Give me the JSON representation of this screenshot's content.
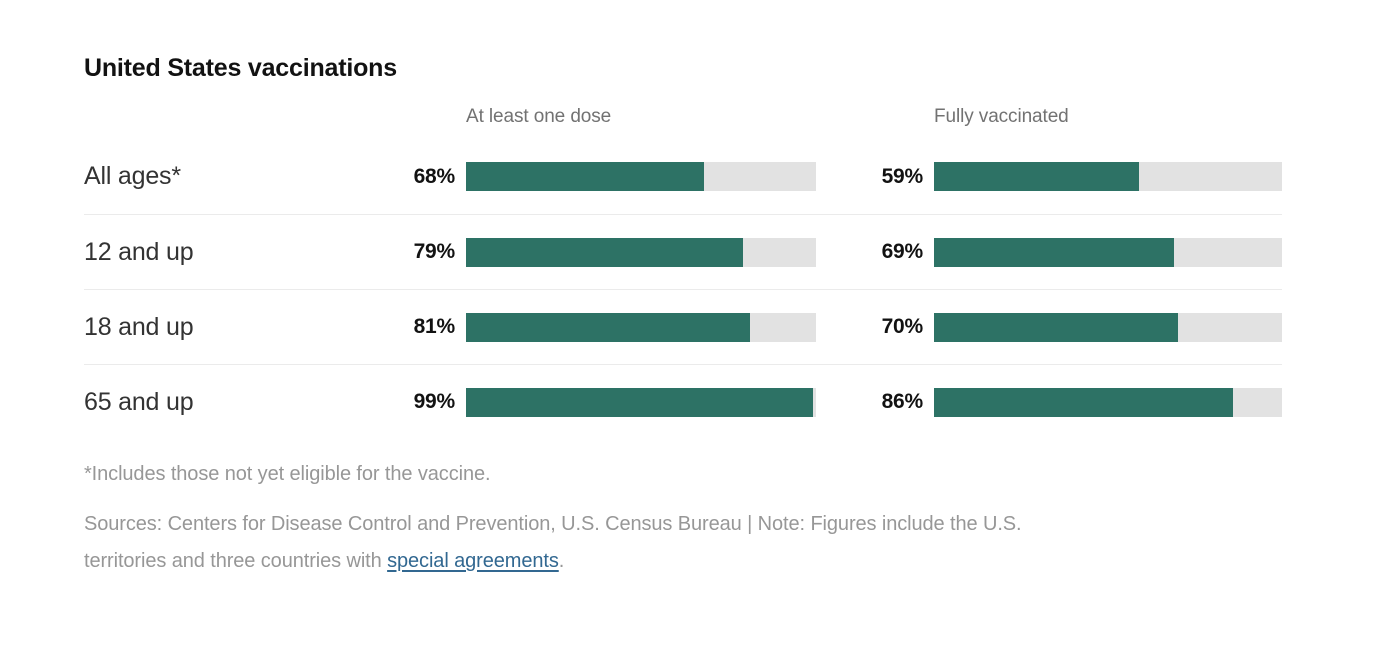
{
  "chart_data": {
    "type": "bar",
    "title": "United States vaccinations",
    "categories": [
      "All ages*",
      "12 and up",
      "18 and up",
      "65 and up"
    ],
    "series": [
      {
        "name": "At least one dose",
        "values": [
          68,
          79,
          81,
          99
        ]
      },
      {
        "name": "Fully vaccinated",
        "values": [
          59,
          69,
          70,
          86
        ]
      }
    ],
    "value_suffix": "%",
    "value_range": [
      0,
      100
    ],
    "legend_position": "column-headers",
    "grid": false,
    "bar_color": "#2d7265",
    "track_color": "#e2e2e2"
  },
  "notes": {
    "footnote": "*Includes those not yet eligible for the vaccine.",
    "sources_line1": "Sources: Centers for Disease Control and Prevention, U.S. Census Bureau | Note: Figures include the U.S.",
    "sources_line2_prefix": "territories and three countries with ",
    "link_text": "special agreements",
    "sources_line2_suffix": "."
  }
}
